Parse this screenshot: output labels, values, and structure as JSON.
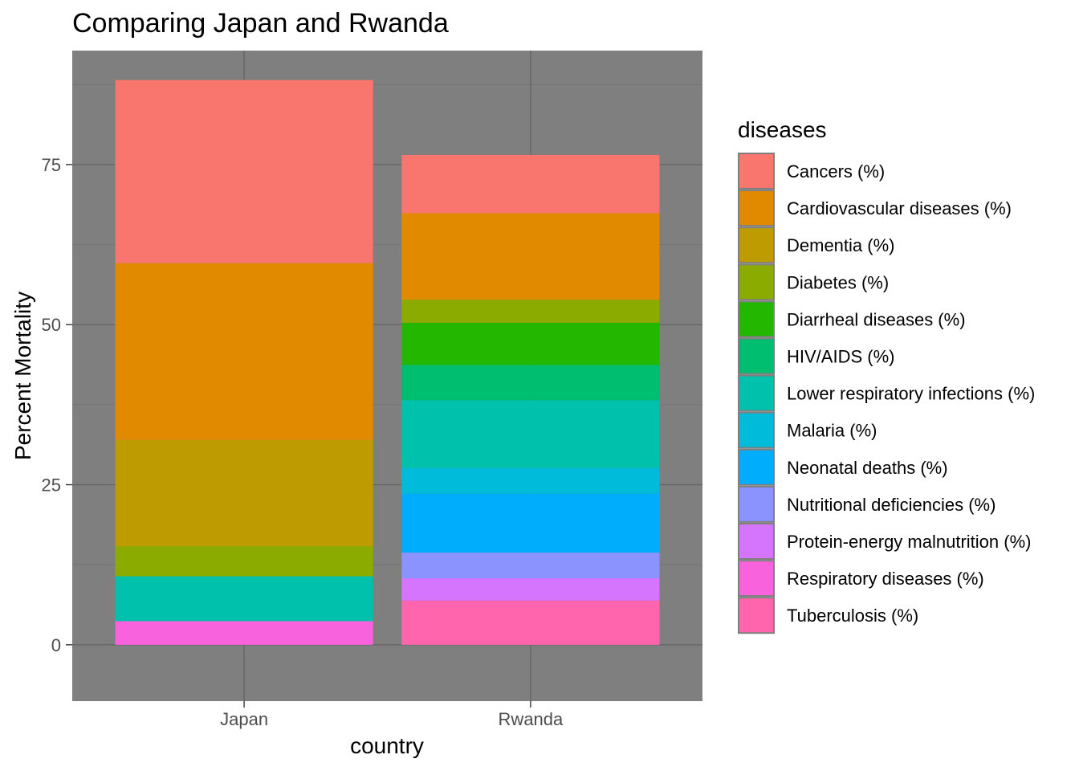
{
  "chart_data": {
    "type": "bar",
    "stacked": true,
    "title": "Comparing Japan and Rwanda",
    "xlabel": "country",
    "ylabel": "Percent Mortality",
    "categories": [
      "Japan",
      "Rwanda"
    ],
    "ylim": [
      -8.8,
      92.8
    ],
    "yticks": [
      0,
      25,
      50,
      75
    ],
    "grid": true,
    "panel_background": "#7f7f7f",
    "legend": {
      "title": "diseases",
      "position": "right"
    },
    "series": [
      {
        "name": "Cancers (%)",
        "color": "#F8766D",
        "values": [
          28.6,
          9.1
        ]
      },
      {
        "name": "Cardiovascular diseases (%)",
        "color": "#E18A00",
        "values": [
          27.6,
          13.5
        ]
      },
      {
        "name": "Dementia (%)",
        "color": "#BE9C00",
        "values": [
          16.6,
          0
        ]
      },
      {
        "name": "Diabetes (%)",
        "color": "#8CAB00",
        "values": [
          4.7,
          3.6
        ]
      },
      {
        "name": "Diarrheal diseases (%)",
        "color": "#24B700",
        "values": [
          0,
          6.6
        ]
      },
      {
        "name": "HIV/AIDS (%)",
        "color": "#00BE70",
        "values": [
          0,
          5.5
        ]
      },
      {
        "name": "Lower respiratory infections (%)",
        "color": "#00C1AB",
        "values": [
          7.0,
          10.6
        ]
      },
      {
        "name": "Malaria (%)",
        "color": "#00BBDA",
        "values": [
          0,
          4.0
        ]
      },
      {
        "name": "Neonatal deaths (%)",
        "color": "#00ACFC",
        "values": [
          0,
          9.2
        ]
      },
      {
        "name": "Nutritional deficiencies (%)",
        "color": "#8B93FF",
        "values": [
          0,
          4.0
        ]
      },
      {
        "name": "Protein-energy malnutrition (%)",
        "color": "#D575FE",
        "values": [
          0,
          3.5
        ]
      },
      {
        "name": "Respiratory diseases (%)",
        "color": "#F962DD",
        "values": [
          3.7,
          0
        ]
      },
      {
        "name": "Tuberculosis (%)",
        "color": "#FF65AC",
        "values": [
          0,
          6.9
        ]
      }
    ]
  }
}
